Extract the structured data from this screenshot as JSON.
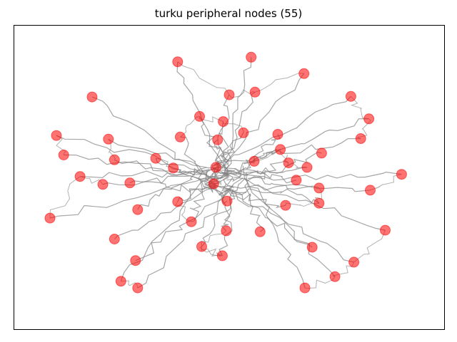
{
  "chart_data": {
    "type": "scatter",
    "title": "turku peripheral nodes (55)",
    "xlabel": "",
    "ylabel": "",
    "axes_ticks": false,
    "grid": false,
    "marker_color": "#ff0000",
    "marker_alpha": 0.55,
    "edge_color": "#808080",
    "xlim": [
      0,
      100
    ],
    "ylim": [
      0,
      100
    ],
    "nodes": [
      {
        "x": 38.0,
        "y": 88.1
      },
      {
        "x": 55.1,
        "y": 89.6
      },
      {
        "x": 67.4,
        "y": 84.2
      },
      {
        "x": 18.1,
        "y": 76.5
      },
      {
        "x": 50.0,
        "y": 77.2
      },
      {
        "x": 56.0,
        "y": 78.1
      },
      {
        "x": 78.3,
        "y": 76.7
      },
      {
        "x": 43.1,
        "y": 70.1
      },
      {
        "x": 48.6,
        "y": 68.4
      },
      {
        "x": 82.5,
        "y": 69.3
      },
      {
        "x": 9.8,
        "y": 63.8
      },
      {
        "x": 21.9,
        "y": 62.6
      },
      {
        "x": 38.6,
        "y": 63.3
      },
      {
        "x": 47.3,
        "y": 62.4
      },
      {
        "x": 53.3,
        "y": 64.7
      },
      {
        "x": 61.3,
        "y": 64.2
      },
      {
        "x": 80.6,
        "y": 62.8
      },
      {
        "x": 11.5,
        "y": 57.4
      },
      {
        "x": 23.3,
        "y": 55.8
      },
      {
        "x": 32.9,
        "y": 56.3
      },
      {
        "x": 61.9,
        "y": 59.2
      },
      {
        "x": 71.5,
        "y": 58.0
      },
      {
        "x": 37.0,
        "y": 53.1
      },
      {
        "x": 46.9,
        "y": 53.3
      },
      {
        "x": 55.8,
        "y": 55.3
      },
      {
        "x": 63.8,
        "y": 54.8
      },
      {
        "x": 68.1,
        "y": 53.3
      },
      {
        "x": 15.3,
        "y": 50.3
      },
      {
        "x": 20.6,
        "y": 47.7
      },
      {
        "x": 26.9,
        "y": 48.2
      },
      {
        "x": 46.4,
        "y": 47.9
      },
      {
        "x": 65.6,
        "y": 49.1
      },
      {
        "x": 70.9,
        "y": 46.5
      },
      {
        "x": 90.1,
        "y": 51.0
      },
      {
        "x": 38.0,
        "y": 42.0
      },
      {
        "x": 49.5,
        "y": 42.2
      },
      {
        "x": 63.1,
        "y": 40.8
      },
      {
        "x": 70.9,
        "y": 41.5
      },
      {
        "x": 82.8,
        "y": 45.8
      },
      {
        "x": 28.7,
        "y": 39.4
      },
      {
        "x": 8.3,
        "y": 36.6
      },
      {
        "x": 41.2,
        "y": 35.4
      },
      {
        "x": 49.3,
        "y": 32.4
      },
      {
        "x": 57.2,
        "y": 32.1
      },
      {
        "x": 86.3,
        "y": 32.6
      },
      {
        "x": 23.3,
        "y": 29.7
      },
      {
        "x": 43.6,
        "y": 27.2
      },
      {
        "x": 69.3,
        "y": 27.0
      },
      {
        "x": 48.4,
        "y": 24.2
      },
      {
        "x": 28.2,
        "y": 22.6
      },
      {
        "x": 79.0,
        "y": 22.1
      },
      {
        "x": 74.6,
        "y": 17.3
      },
      {
        "x": 24.8,
        "y": 15.8
      },
      {
        "x": 28.7,
        "y": 13.6
      },
      {
        "x": 67.6,
        "y": 13.6
      }
    ]
  }
}
